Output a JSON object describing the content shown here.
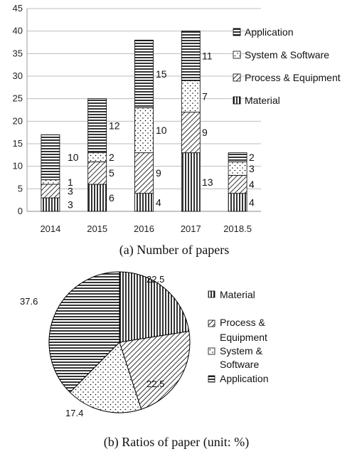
{
  "chart_data": [
    {
      "type": "bar",
      "stacked": true,
      "categories": [
        "2014",
        "2015",
        "2016",
        "2017",
        "2018.5"
      ],
      "series": [
        {
          "name": "Material",
          "values": [
            3,
            6,
            4,
            13,
            4
          ]
        },
        {
          "name": "Process & Equipment",
          "values": [
            3,
            5,
            9,
            9,
            4
          ]
        },
        {
          "name": "System & Software",
          "values": [
            1,
            2,
            10,
            7,
            3
          ]
        },
        {
          "name": "Application",
          "values": [
            10,
            12,
            15,
            11,
            2
          ]
        }
      ],
      "legend_order": [
        "Application",
        "System & Software",
        "Process & Equipment",
        "Material"
      ],
      "ylim": [
        0,
        45
      ],
      "yticks": [
        0,
        5,
        10,
        15,
        20,
        25,
        30,
        35,
        40,
        45
      ],
      "grid": true,
      "legend_position": "right",
      "caption": "(a) Number of papers"
    },
    {
      "type": "pie",
      "slices": [
        {
          "name": "Material",
          "value": 22.5,
          "label": "22.5"
        },
        {
          "name": "Process & Equipment",
          "value": 22.5,
          "label": "22.5"
        },
        {
          "name": "System & Software",
          "value": 17.4,
          "label": "17.4"
        },
        {
          "name": "Application",
          "value": 37.6,
          "label": "37.6"
        }
      ],
      "legend": [
        "Material",
        "Process &",
        "Equipment",
        "System &",
        "Software",
        "Application"
      ],
      "legend_position": "right",
      "caption": "(b) Ratios of paper (unit: %)"
    }
  ]
}
